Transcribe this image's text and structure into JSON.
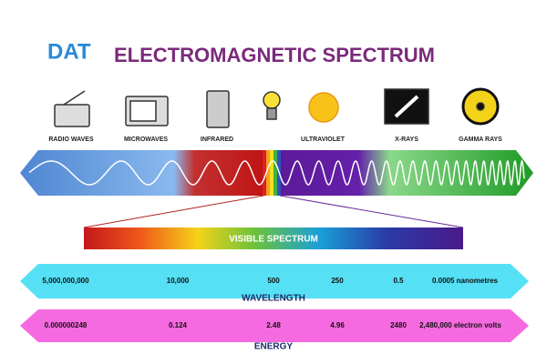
{
  "header": {
    "logo": "DAT",
    "title": "ELECTROMAGNETIC SPECTRUM"
  },
  "bands": [
    {
      "label": "RADIO WAVES"
    },
    {
      "label": "MICROWAVES"
    },
    {
      "label": "INFRARED"
    },
    {
      "label": "ULTRAVIOLET"
    },
    {
      "label": "X-RAYS"
    },
    {
      "label": "GAMMA RAYS"
    }
  ],
  "visible": {
    "label": "VISIBLE SPECTRUM"
  },
  "wavelength": {
    "label": "WAVELENGTH",
    "values": [
      "5,000,000,000",
      "10,000",
      "500",
      "250",
      "0.5",
      "0.0005 nanometres"
    ]
  },
  "energy": {
    "label": "ENERGY",
    "values": [
      "0.000000248",
      "0.124",
      "2.48",
      "4.96",
      "2480",
      "2,480,000 electron volts"
    ]
  }
}
